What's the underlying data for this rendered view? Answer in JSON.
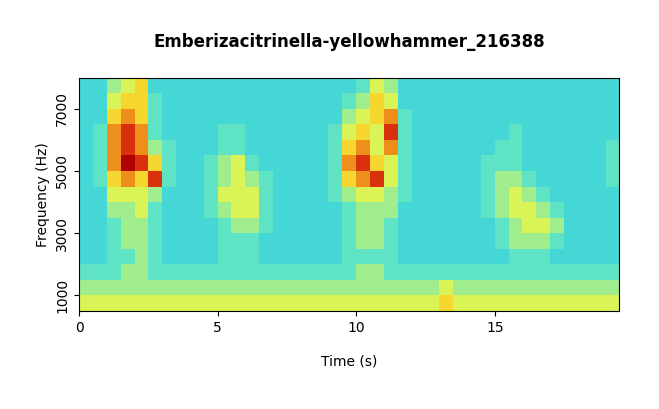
{
  "chart_data": {
    "type": "heatmap",
    "title": "Emberizacitrinella-yellowhammer_216388",
    "x_label": "Time (s)",
    "y_label": "Frequency (Hz)",
    "x": [
      0.25,
      0.75,
      1.25,
      1.75,
      2.25,
      2.75,
      3.25,
      3.75,
      4.25,
      4.75,
      5.25,
      5.75,
      6.25,
      6.75,
      7.25,
      7.75,
      8.25,
      8.75,
      9.25,
      9.75,
      10.25,
      10.75,
      11.25,
      11.75,
      12.25,
      12.75,
      13.25,
      13.75,
      14.25,
      14.75,
      15.25,
      15.75,
      16.25,
      16.75,
      17.25,
      17.75,
      18.25,
      18.75,
      19.25
    ],
    "y": [
      750,
      1250,
      1750,
      2250,
      2750,
      3250,
      3750,
      4250,
      4750,
      5250,
      5750,
      6250,
      6750,
      7250,
      7750
    ],
    "cells": [
      [
        5,
        5,
        5,
        5,
        5,
        5,
        5,
        5,
        5,
        5,
        5,
        5,
        5,
        5,
        5,
        5,
        5,
        5,
        5,
        5,
        5,
        5,
        5,
        5,
        5,
        5,
        6,
        5,
        5,
        5,
        5,
        5,
        5,
        5,
        5,
        5,
        5,
        5,
        5
      ],
      [
        4,
        4,
        4,
        4,
        4,
        4,
        4,
        4,
        4,
        4,
        4,
        4,
        4,
        4,
        4,
        4,
        4,
        4,
        4,
        4,
        4,
        4,
        4,
        4,
        4,
        4,
        5,
        4,
        4,
        4,
        4,
        4,
        4,
        4,
        4,
        4,
        4,
        4,
        4
      ],
      [
        3,
        3,
        3,
        4,
        4,
        3,
        3,
        3,
        3,
        3,
        3,
        3,
        3,
        3,
        3,
        3,
        3,
        3,
        3,
        3,
        4,
        4,
        3,
        3,
        3,
        3,
        3,
        3,
        3,
        3,
        3,
        3,
        3,
        3,
        3,
        3,
        3,
        3,
        3
      ],
      [
        2,
        2,
        3,
        3,
        4,
        3,
        2,
        2,
        2,
        2,
        3,
        3,
        3,
        2,
        2,
        2,
        2,
        2,
        2,
        3,
        3,
        3,
        3,
        2,
        2,
        2,
        2,
        2,
        2,
        2,
        2,
        3,
        3,
        3,
        2,
        2,
        2,
        2,
        2
      ],
      [
        2,
        2,
        3,
        4,
        4,
        3,
        2,
        2,
        2,
        2,
        3,
        3,
        3,
        2,
        2,
        2,
        2,
        2,
        2,
        3,
        4,
        4,
        3,
        2,
        2,
        2,
        2,
        2,
        2,
        2,
        3,
        4,
        4,
        4,
        3,
        2,
        2,
        2,
        2
      ],
      [
        2,
        2,
        3,
        4,
        4,
        3,
        2,
        2,
        2,
        2,
        3,
        4,
        4,
        3,
        2,
        2,
        2,
        2,
        2,
        3,
        4,
        4,
        3,
        2,
        2,
        2,
        2,
        2,
        2,
        2,
        3,
        4,
        5,
        5,
        4,
        2,
        2,
        2,
        2
      ],
      [
        2,
        2,
        4,
        4,
        5,
        3,
        2,
        2,
        2,
        3,
        4,
        5,
        5,
        3,
        2,
        2,
        2,
        2,
        2,
        3,
        4,
        4,
        4,
        2,
        2,
        2,
        2,
        2,
        2,
        3,
        4,
        5,
        5,
        4,
        3,
        2,
        2,
        2,
        2
      ],
      [
        2,
        2,
        5,
        5,
        5,
        4,
        2,
        2,
        2,
        3,
        5,
        5,
        5,
        3,
        2,
        2,
        2,
        2,
        3,
        4,
        5,
        5,
        4,
        3,
        2,
        2,
        2,
        2,
        2,
        3,
        4,
        5,
        4,
        3,
        2,
        2,
        2,
        2,
        2
      ],
      [
        2,
        3,
        6,
        7,
        6,
        8,
        3,
        2,
        2,
        3,
        4,
        5,
        4,
        3,
        2,
        2,
        2,
        2,
        3,
        6,
        7,
        8,
        5,
        3,
        2,
        2,
        2,
        2,
        2,
        3,
        4,
        4,
        3,
        2,
        2,
        2,
        2,
        2,
        3
      ],
      [
        2,
        3,
        7,
        9,
        8,
        6,
        3,
        2,
        2,
        3,
        4,
        5,
        3,
        2,
        2,
        2,
        2,
        2,
        3,
        7,
        8,
        6,
        5,
        3,
        2,
        2,
        2,
        2,
        2,
        3,
        3,
        3,
        2,
        2,
        2,
        2,
        2,
        2,
        3
      ],
      [
        2,
        3,
        7,
        8,
        7,
        4,
        3,
        2,
        2,
        2,
        3,
        3,
        2,
        2,
        2,
        2,
        2,
        2,
        3,
        6,
        7,
        5,
        7,
        3,
        2,
        2,
        2,
        2,
        2,
        2,
        3,
        3,
        2,
        2,
        2,
        2,
        2,
        2,
        3
      ],
      [
        2,
        3,
        7,
        8,
        7,
        3,
        2,
        2,
        2,
        2,
        3,
        3,
        2,
        2,
        2,
        2,
        2,
        2,
        3,
        5,
        6,
        5,
        8,
        3,
        2,
        2,
        2,
        2,
        2,
        2,
        2,
        3,
        2,
        2,
        2,
        2,
        2,
        2,
        2
      ],
      [
        2,
        2,
        6,
        7,
        6,
        3,
        2,
        2,
        2,
        2,
        2,
        2,
        2,
        2,
        2,
        2,
        2,
        2,
        2,
        4,
        5,
        6,
        7,
        3,
        2,
        2,
        2,
        2,
        2,
        2,
        2,
        2,
        2,
        2,
        2,
        2,
        2,
        2,
        2
      ],
      [
        2,
        2,
        5,
        6,
        6,
        3,
        2,
        2,
        2,
        2,
        2,
        2,
        2,
        2,
        2,
        2,
        2,
        2,
        2,
        3,
        4,
        6,
        5,
        2,
        2,
        2,
        2,
        2,
        2,
        2,
        2,
        2,
        2,
        2,
        2,
        2,
        2,
        2,
        2
      ],
      [
        2,
        2,
        4,
        5,
        6,
        2,
        2,
        2,
        2,
        2,
        2,
        2,
        2,
        2,
        2,
        2,
        2,
        2,
        2,
        2,
        3,
        5,
        4,
        2,
        2,
        2,
        2,
        2,
        2,
        2,
        2,
        2,
        2,
        2,
        2,
        2,
        2,
        2,
        2
      ]
    ],
    "xlim": [
      0,
      19.5
    ],
    "ylim": [
      500,
      8000
    ],
    "xticks": [
      0,
      5,
      10,
      15
    ],
    "yticks": [
      1000,
      3000,
      5000,
      7000
    ]
  }
}
